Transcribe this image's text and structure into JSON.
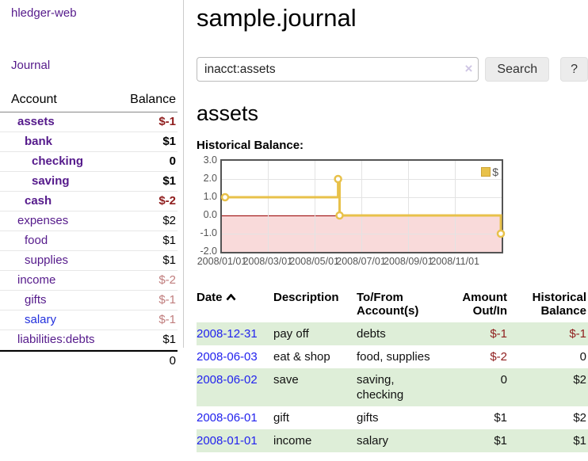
{
  "app": {
    "title": "hledger-web",
    "nav_journal": "Journal"
  },
  "sidebar": {
    "header": {
      "account": "Account",
      "balance": "Balance"
    },
    "accounts": [
      {
        "name": "assets",
        "depth": 1,
        "balance": "$-1",
        "bold": true,
        "neg": "strong"
      },
      {
        "name": "bank",
        "depth": 2,
        "balance": "$1",
        "bold": true
      },
      {
        "name": "checking",
        "depth": 3,
        "balance": "0",
        "bold": true
      },
      {
        "name": "saving",
        "depth": 3,
        "balance": "$1",
        "bold": true
      },
      {
        "name": "cash",
        "depth": 2,
        "balance": "$-2",
        "bold": true,
        "neg": "strong"
      },
      {
        "name": "expenses",
        "depth": 1,
        "balance": "$2"
      },
      {
        "name": "food",
        "depth": 2,
        "balance": "$1"
      },
      {
        "name": "supplies",
        "depth": 2,
        "balance": "$1"
      },
      {
        "name": "income",
        "depth": 1,
        "balance": "$-2",
        "neg": "soft"
      },
      {
        "name": "gifts",
        "depth": 2,
        "balance": "$-1",
        "neg": "soft"
      },
      {
        "name": "salary",
        "depth": 2,
        "balance": "$-1",
        "neg": "soft",
        "blue": true
      },
      {
        "name": "liabilities:debts",
        "depth": 1,
        "balance": "$1"
      }
    ],
    "total": "0"
  },
  "main": {
    "title": "sample.journal",
    "search": {
      "value": "inacct:assets",
      "clear_icon": "×",
      "button": "Search",
      "help": "?"
    },
    "account_title": "assets",
    "chart_label": "Historical Balance:"
  },
  "chart_data": {
    "type": "line",
    "style": "step",
    "title": "Historical Balance",
    "legend": [
      {
        "label": "$",
        "color": "#e8c14a"
      }
    ],
    "legend_position": "top-right",
    "points": [
      [
        "2008-01-01",
        1
      ],
      [
        "2008-06-01",
        2
      ],
      [
        "2008-06-03",
        0
      ],
      [
        "2008-12-31",
        -1
      ]
    ],
    "ylim": [
      -2.0,
      3.0
    ],
    "y_ticks": [
      "3.0",
      "2.0",
      "1.0",
      "0.0",
      "-1.0",
      "-2.0"
    ],
    "y_tick_values": [
      3,
      2,
      1,
      0,
      -1,
      -2
    ],
    "x_ticks": [
      "2008/01/01",
      "2008/03/01",
      "2008/05/01",
      "2008/07/01",
      "2008/09/01",
      "2008/11/01"
    ],
    "grid": true,
    "negative_region_color": "#f9dada",
    "zero_line_color": "#990000",
    "line_color": "#e8c14a"
  },
  "register": {
    "headers": [
      "Date",
      "Description",
      "To/From Account(s)",
      "Amount Out/In",
      "Historical Balance"
    ],
    "rows": [
      {
        "date": "2008-12-31",
        "description": "pay off",
        "accounts": "debts",
        "amount": "$-1",
        "balance": "$-1",
        "amount_neg": true,
        "balance_neg": true
      },
      {
        "date": "2008-06-03",
        "description": "eat & shop",
        "accounts": "food, supplies",
        "amount": "$-2",
        "balance": "0",
        "amount_neg": true,
        "balance_neg": false
      },
      {
        "date": "2008-06-02",
        "description": "save",
        "accounts": "saving, checking",
        "amount": "0",
        "balance": "$2",
        "amount_neg": false,
        "balance_neg": false
      },
      {
        "date": "2008-06-01",
        "description": "gift",
        "accounts": "gifts",
        "amount": "$1",
        "balance": "$2",
        "amount_neg": false,
        "balance_neg": false
      },
      {
        "date": "2008-01-01",
        "description": "income",
        "accounts": "salary",
        "amount": "$1",
        "balance": "$1",
        "amount_neg": false,
        "balance_neg": false
      }
    ]
  }
}
